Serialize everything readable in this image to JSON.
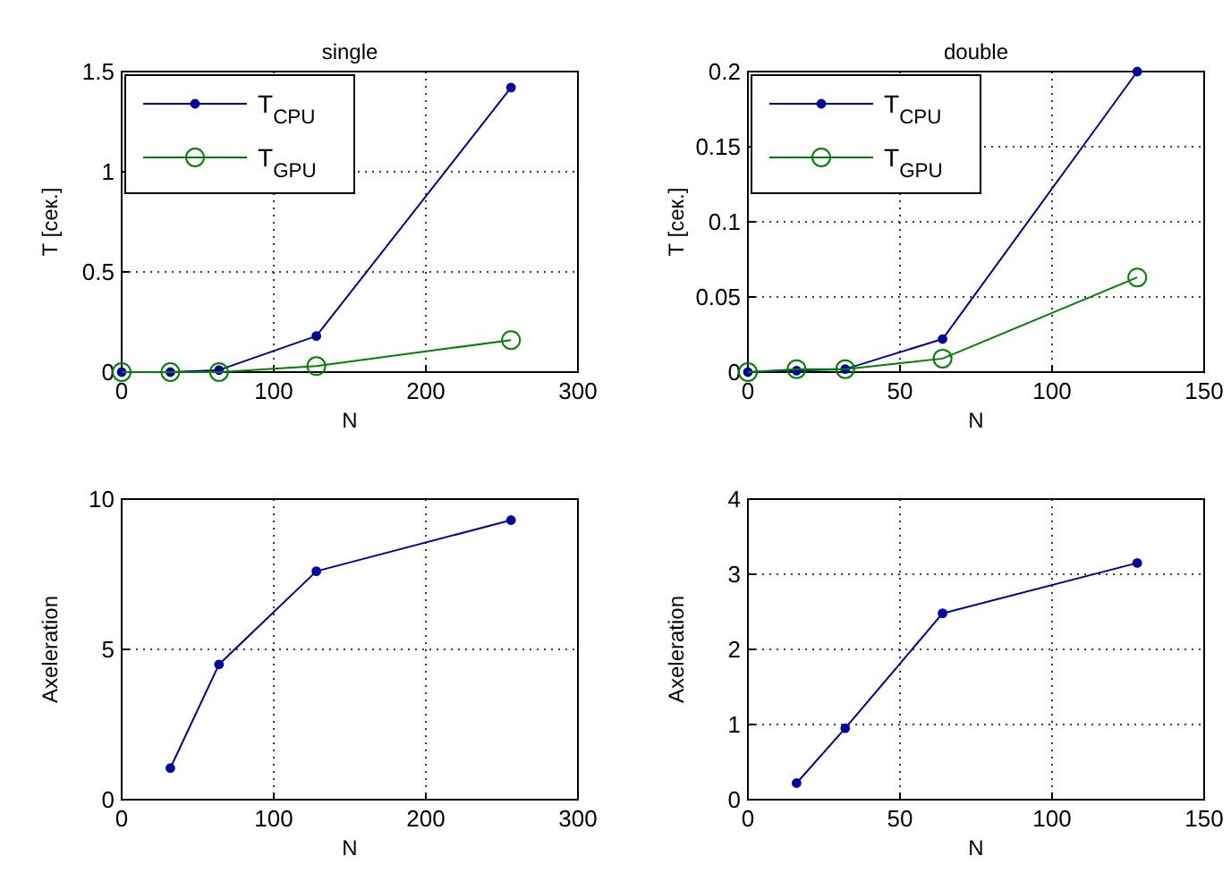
{
  "chart_data": [
    {
      "type": "line",
      "title": "single",
      "xlabel": "N",
      "ylabel": "T [сек.]",
      "xlim": [
        0,
        300
      ],
      "xticks": [
        0,
        100,
        200,
        300
      ],
      "ylim": [
        0,
        1.5
      ],
      "yticks": [
        0,
        0.5,
        1,
        1.5
      ],
      "grid": true,
      "legend": "top left",
      "series": [
        {
          "name": "T$_{CPU}$",
          "color": "#0000a0",
          "marker": "circle",
          "x": [
            0,
            32,
            64,
            128,
            256
          ],
          "values": [
            0,
            0,
            0.01,
            0.18,
            1.42
          ]
        },
        {
          "name": "T$_{GPU}$",
          "color": "#008000",
          "marker": "circle",
          "x": [
            0,
            32,
            64,
            128,
            256
          ],
          "values": [
            0,
            0,
            0,
            0.03,
            0.16
          ]
        }
      ]
    },
    {
      "type": "line",
      "title": "double",
      "xlabel": "N",
      "ylabel": "T [сек.]",
      "xlim": [
        0,
        150
      ],
      "xticks": [
        0,
        50,
        100,
        150
      ],
      "ylim": [
        0,
        0.2
      ],
      "yticks": [
        0,
        0.05,
        0.1,
        0.15,
        0.2
      ],
      "grid": true,
      "legend": "top left",
      "series": [
        {
          "name": "T$_{CPU}$",
          "color": "#0000a0",
          "marker": "circle",
          "x": [
            0,
            16,
            32,
            64,
            128
          ],
          "values": [
            0,
            0.001,
            0.002,
            0.022,
            0.2
          ]
        },
        {
          "name": "T$_{GPU}$",
          "color": "#008000",
          "marker": "circle",
          "x": [
            0,
            16,
            32,
            64,
            128
          ],
          "values": [
            0,
            0.002,
            0.002,
            0.009,
            0.063
          ]
        }
      ]
    },
    {
      "type": "line",
      "xlabel": "N",
      "ylabel": "Axeleration",
      "xlim": [
        0,
        300
      ],
      "xticks": [
        0,
        100,
        200,
        300
      ],
      "ylim": [
        0,
        10
      ],
      "yticks": [
        0,
        5,
        10
      ],
      "grid": true,
      "series": [
        {
          "color": "#0000a0",
          "marker": "circle",
          "x": [
            32,
            64,
            128,
            256
          ],
          "values": [
            1.05,
            4.5,
            7.6,
            9.3
          ]
        }
      ]
    },
    {
      "type": "line",
      "xlabel": "N",
      "ylabel": "Axeleration",
      "xlim": [
        0,
        150
      ],
      "xticks": [
        0,
        50,
        100,
        150
      ],
      "ylim": [
        0,
        4
      ],
      "yticks": [
        0,
        1,
        2,
        3,
        4
      ],
      "grid": true,
      "series": [
        {
          "color": "#0000a0",
          "marker": "circle",
          "x": [
            16,
            32,
            64,
            128
          ],
          "values": [
            0.22,
            0.95,
            2.48,
            3.15
          ]
        }
      ]
    }
  ]
}
